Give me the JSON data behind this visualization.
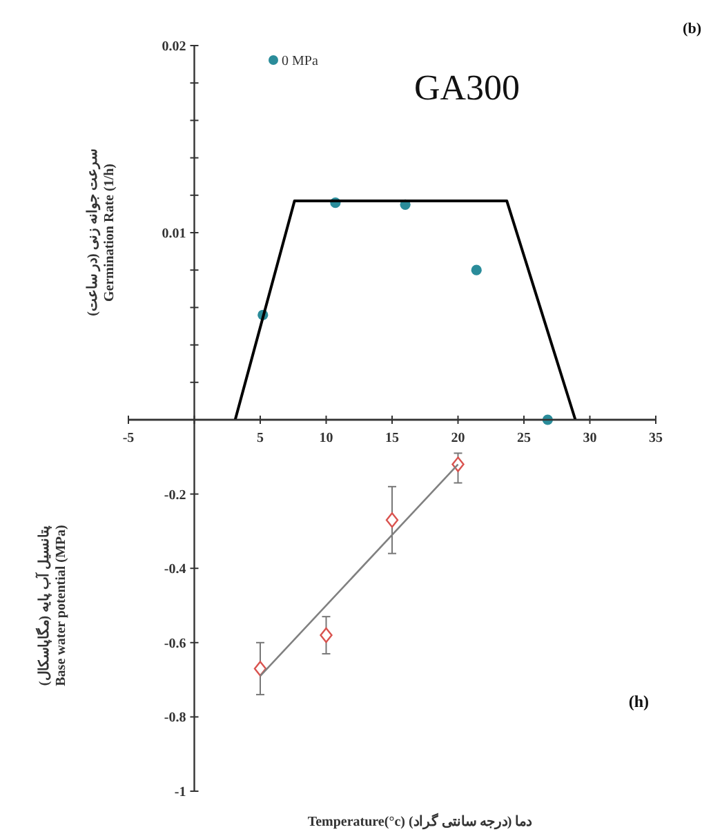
{
  "chart_data": [
    {
      "type": "scatter",
      "ylabel": "سرعت جوانه زنی (در ساعت)\nGermination Rate (1/h)",
      "annotations": [
        "GA300",
        "(b)"
      ],
      "legend": "top left",
      "xlim": [
        -5,
        35
      ],
      "xticks": [
        -5,
        {
          "value": 0,
          "label": null
        },
        5,
        10,
        15,
        20,
        25,
        30,
        35
      ],
      "ylim": [
        0,
        0.02
      ],
      "yticks": [
        {
          "value": 0,
          "label": null
        },
        {
          "value": 0.002,
          "label": null
        },
        {
          "value": 0.004,
          "label": null
        },
        {
          "value": 0.006,
          "label": null
        },
        {
          "value": 0.008,
          "label": null
        },
        0.01,
        {
          "value": 0.012,
          "label": null
        },
        {
          "value": 0.014,
          "label": null
        },
        {
          "value": 0.016,
          "label": null
        },
        {
          "value": 0.018,
          "label": null
        },
        0.02
      ],
      "series": [
        {
          "name": "0 MPa",
          "marker": "circle",
          "color": "#2a8c9a",
          "x": [
            5.2,
            10.7,
            16.0,
            21.4,
            26.8
          ],
          "values": [
            0.0056,
            0.0116,
            0.0115,
            0.008,
            0
          ]
        },
        {
          "type": "line",
          "color": "#000000",
          "x": [
            3.1,
            7.6,
            23.7,
            28.9
          ],
          "values": [
            0,
            0.0117,
            0.0117,
            0
          ]
        }
      ]
    },
    {
      "type": "scatter",
      "ylabel": "پتانسیل آب پایه (مگاپاسکال)\nBase water potential (MPa)",
      "xlabel": "Temperature(°c) دما (درجه سانتی گراد)",
      "annotations": [
        "(h)"
      ],
      "tick_labels": "y",
      "xlim": [
        -5,
        35
      ],
      "ylim": [
        -1,
        0
      ],
      "yticks": [
        -1,
        -0.8,
        -0.6,
        -0.4,
        -0.2,
        {
          "value": 0,
          "label": null
        }
      ],
      "series": [
        {
          "marker": "diamond",
          "color": "#d9534f",
          "x": [
            5,
            10,
            15,
            20
          ],
          "values": [
            -0.67,
            -0.58,
            -0.27,
            -0.12
          ],
          "errors": [
            [
              -0.74,
              -0.6
            ],
            [
              -0.63,
              -0.53
            ],
            [
              -0.36,
              -0.18
            ],
            [
              -0.17,
              -0.09
            ]
          ]
        },
        {
          "type": "line",
          "color": "#808080",
          "x": [
            5,
            20
          ],
          "values": [
            -0.69,
            -0.12
          ]
        }
      ]
    }
  ]
}
